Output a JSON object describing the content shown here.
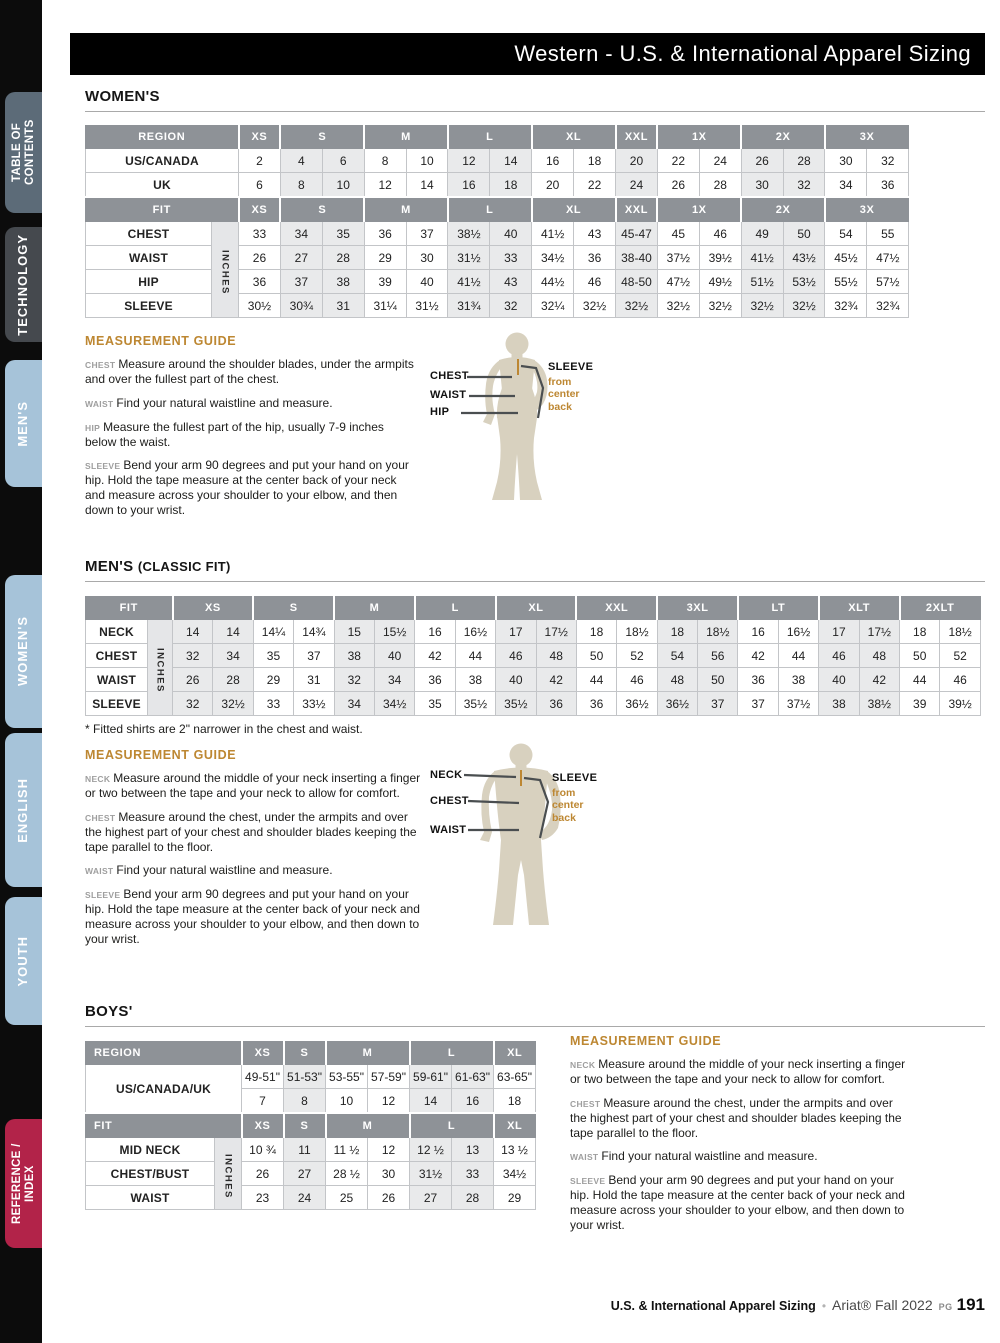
{
  "header": {
    "title": "Western - U.S. & International Apparel Sizing"
  },
  "sidebar": {
    "tabs": [
      {
        "label": "TABLE OF CONTENTS",
        "color": "#5c6b78"
      },
      {
        "label": "TECHNOLOGY",
        "color": "#45494e"
      },
      {
        "label": "MEN'S",
        "color": "#a6c3d9"
      },
      {
        "label": "WOMEN'S",
        "color": "#a6c3d9"
      },
      {
        "label": "ENGLISH",
        "color": "#a6c3d9"
      },
      {
        "label": "YOUTH",
        "color": "#a6c3d9"
      },
      {
        "label": "REFERENCE / INDEX",
        "color": "#b22349"
      }
    ]
  },
  "womens": {
    "heading": "WOMEN'S",
    "table": {
      "groups": [
        {
          "label": "XS",
          "span": 1
        },
        {
          "label": "S",
          "span": 2
        },
        {
          "label": "M",
          "span": 2
        },
        {
          "label": "L",
          "span": 2
        },
        {
          "label": "XL",
          "span": 2
        },
        {
          "label": "XXL",
          "span": 1
        },
        {
          "label": "1X",
          "span": 2
        },
        {
          "label": "2X",
          "span": 2
        },
        {
          "label": "3X",
          "span": 2
        }
      ],
      "sections": [
        {
          "header": "REGION",
          "rows": [
            {
              "label": "US/CANADA",
              "cells": [
                "2",
                "4",
                "6",
                "8",
                "10",
                "12",
                "14",
                "16",
                "18",
                "20",
                "22",
                "24",
                "26",
                "28",
                "30",
                "32"
              ]
            },
            {
              "label": "UK",
              "cells": [
                "6",
                "8",
                "10",
                "12",
                "14",
                "16",
                "18",
                "20",
                "22",
                "24",
                "26",
                "28",
                "30",
                "32",
                "34",
                "36"
              ]
            }
          ]
        },
        {
          "header": "FIT",
          "inches": "INCHES",
          "rows": [
            {
              "label": "CHEST",
              "cells": [
                "33",
                "34",
                "35",
                "36",
                "37",
                "38½",
                "40",
                "41½",
                "43",
                "45-47",
                "45",
                "46",
                "49",
                "50",
                "54",
                "55"
              ]
            },
            {
              "label": "WAIST",
              "cells": [
                "26",
                "27",
                "28",
                "29",
                "30",
                "31½",
                "33",
                "34½",
                "36",
                "38-40",
                "37½",
                "39½",
                "41½",
                "43½",
                "45½",
                "47½"
              ]
            },
            {
              "label": "HIP",
              "cells": [
                "36",
                "37",
                "38",
                "39",
                "40",
                "41½",
                "43",
                "44½",
                "46",
                "48-50",
                "47½",
                "49½",
                "51½",
                "53½",
                "55½",
                "57½"
              ]
            },
            {
              "label": "SLEEVE",
              "cells": [
                "30½",
                "30¾",
                "31",
                "31¼",
                "31½",
                "31¾",
                "32",
                "32¼",
                "32½",
                "32½",
                "32½",
                "32½",
                "32½",
                "32½",
                "32¾",
                "32¾"
              ]
            }
          ]
        }
      ]
    },
    "guide": {
      "heading": "MEASUREMENT GUIDE",
      "items": [
        {
          "term": "CHEST",
          "text": "Measure around the shoulder blades, under the armpits and over the fullest part of the chest."
        },
        {
          "term": "WAIST",
          "text": "Find your natural waistline and measure."
        },
        {
          "term": "HIP",
          "text": "Measure the fullest part of the hip, usually 7-9 inches below the waist."
        },
        {
          "term": "SLEEVE",
          "text": "Bend your arm 90 degrees and put your hand on your hip. Hold the tape measure at the center back of your neck and measure across your shoulder to your elbow, and then down to your wrist."
        }
      ]
    },
    "figure": {
      "labels": [
        "CHEST",
        "WAIST",
        "HIP"
      ],
      "sleeve_label": "SLEEVE",
      "sleeve_sub": "from center back"
    }
  },
  "mens": {
    "heading": "MEN'S",
    "heading_suffix": "(CLASSIC FIT)",
    "table": {
      "groups": [
        {
          "label": "XS",
          "span": 2
        },
        {
          "label": "S",
          "span": 2
        },
        {
          "label": "M",
          "span": 2
        },
        {
          "label": "L",
          "span": 2
        },
        {
          "label": "XL",
          "span": 2
        },
        {
          "label": "XXL",
          "span": 2
        },
        {
          "label": "3XL",
          "span": 2
        },
        {
          "label": "LT",
          "span": 2
        },
        {
          "label": "XLT",
          "span": 2
        },
        {
          "label": "2XLT",
          "span": 2
        }
      ],
      "sections": [
        {
          "header": "FIT",
          "inches": "INCHES",
          "rows": [
            {
              "label": "NECK",
              "cells": [
                "14",
                "14",
                "14¼",
                "14¾",
                "15",
                "15½",
                "16",
                "16½",
                "17",
                "17½",
                "18",
                "18½",
                "18",
                "18½",
                "16",
                "16½",
                "17",
                "17½",
                "18",
                "18½"
              ]
            },
            {
              "label": "CHEST",
              "cells": [
                "32",
                "34",
                "35",
                "37",
                "38",
                "40",
                "42",
                "44",
                "46",
                "48",
                "50",
                "52",
                "54",
                "56",
                "42",
                "44",
                "46",
                "48",
                "50",
                "52"
              ]
            },
            {
              "label": "WAIST",
              "cells": [
                "26",
                "28",
                "29",
                "31",
                "32",
                "34",
                "36",
                "38",
                "40",
                "42",
                "44",
                "46",
                "48",
                "50",
                "36",
                "38",
                "40",
                "42",
                "44",
                "46"
              ]
            },
            {
              "label": "SLEEVE",
              "cells": [
                "32",
                "32½",
                "33",
                "33½",
                "34",
                "34½",
                "35",
                "35½",
                "35½",
                "36",
                "36",
                "36½",
                "36½",
                "37",
                "37",
                "37½",
                "38",
                "38½",
                "39",
                "39½"
              ]
            }
          ]
        }
      ]
    },
    "footnote": "* Fitted shirts are 2\" narrower in the chest and waist.",
    "guide": {
      "heading": "MEASUREMENT GUIDE",
      "items": [
        {
          "term": "NECK",
          "text": "Measure around the middle of your neck inserting a finger or two between the tape and your neck to allow for comfort."
        },
        {
          "term": "CHEST",
          "text": "Measure around the chest, under the armpits and over the highest part of your chest and shoulder blades keeping the tape parallel to the floor."
        },
        {
          "term": "WAIST",
          "text": "Find your natural waistline and measure."
        },
        {
          "term": "SLEEVE",
          "text": "Bend your arm 90 degrees and put your hand on your hip. Hold the tape measure at the center back of your neck and measure across your shoulder to your elbow, and then down to your wrist."
        }
      ]
    },
    "figure": {
      "labels": [
        "NECK",
        "CHEST",
        "WAIST"
      ],
      "sleeve_label": "SLEEVE",
      "sleeve_sub": "from center back"
    }
  },
  "boys": {
    "heading": "BOYS'",
    "table": {
      "groups": [
        {
          "label": "XS",
          "span": 1
        },
        {
          "label": "S",
          "span": 1
        },
        {
          "label": "M",
          "span": 2
        },
        {
          "label": "L",
          "span": 2
        },
        {
          "label": "XL",
          "span": 1
        }
      ],
      "sections": [
        {
          "header": "REGION",
          "rows": [
            {
              "label": "US/CANADA/UK",
              "cells": [
                "49-51\"",
                "51-53\"",
                "53-55\"",
                "57-59\"",
                "59-61\"",
                "61-63\"",
                "63-65\""
              ],
              "cells2": [
                "7",
                "8",
                "10",
                "12",
                "14",
                "16",
                "18"
              ]
            }
          ]
        },
        {
          "header": "FIT",
          "inches": "INCHES",
          "rows": [
            {
              "label": "MID NECK",
              "cells": [
                "10 ¾",
                "11",
                "11 ½",
                "12",
                "12 ½",
                "13",
                "13 ½"
              ]
            },
            {
              "label": "CHEST/BUST",
              "cells": [
                "26",
                "27",
                "28 ½",
                "30",
                "31½",
                "33",
                "34½"
              ]
            },
            {
              "label": "WAIST",
              "cells": [
                "23",
                "24",
                "25",
                "26",
                "27",
                "28",
                "29"
              ]
            }
          ]
        }
      ]
    },
    "guide": {
      "heading": "MEASUREMENT GUIDE",
      "items": [
        {
          "term": "NECK",
          "text": "Measure around the middle of your neck inserting a finger or two between the tape and your neck to allow for comfort."
        },
        {
          "term": "CHEST",
          "text": "Measure around the chest, under the armpits and over the highest part of your chest and shoulder blades keeping the tape parallel to the floor."
        },
        {
          "term": "WAIST",
          "text": "Find your natural waistline and measure."
        },
        {
          "term": "SLEEVE",
          "text": "Bend your arm 90 degrees and put your hand on your hip. Hold the tape measure at the center back of your neck and measure across your shoulder to your elbow, and then down to your wrist."
        }
      ]
    }
  },
  "footer": {
    "left": "U.S. & International Apparel Sizing",
    "separator": "•",
    "brand": "Ariat® Fall 2022",
    "pg_label": "PG",
    "page": "191"
  },
  "colors": {
    "accent_orange": "#bd8732",
    "tab_blue": "#a6c3d9",
    "tab_red": "#b22349",
    "tab_slate": "#5c6b78",
    "tab_charcoal": "#45494e",
    "table_header_gray": "#8e9297",
    "shaded_cell": "#e9eaeb",
    "silhouette": "#d8d1bf"
  }
}
